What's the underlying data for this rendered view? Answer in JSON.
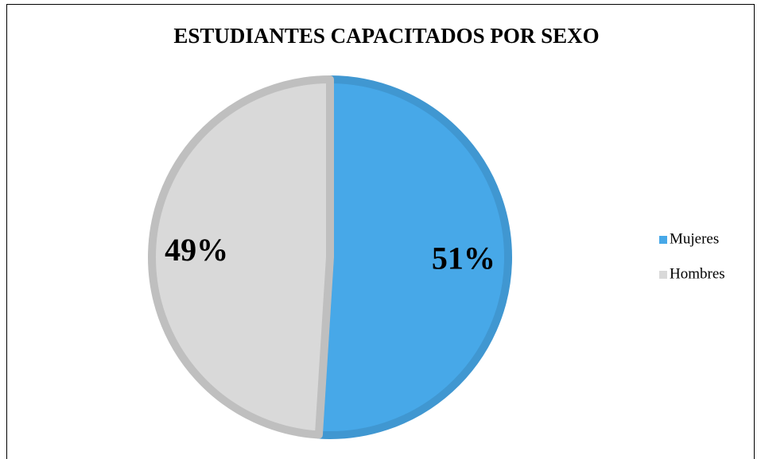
{
  "chart_data": {
    "type": "pie",
    "title": "ESTUDIANTES CAPACITADOS POR SEXO",
    "categories": [
      "Mujeres",
      "Hombres"
    ],
    "values": [
      51,
      49
    ],
    "value_labels": [
      "51%",
      "49%"
    ],
    "colors": [
      "#47a8e8",
      "#d9d9d9"
    ],
    "legend": "right"
  }
}
